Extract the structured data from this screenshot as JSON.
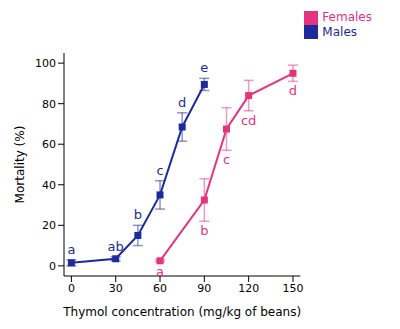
{
  "chart_data": {
    "type": "line",
    "x_label": "Thymol concentration (mg/kg of beans)",
    "y_label": "Mortality (%)",
    "xlim": [
      -5,
      155
    ],
    "xticks": [
      0,
      30,
      60,
      90,
      120,
      150
    ],
    "ylim": [
      -5,
      105
    ],
    "yticks": [
      0,
      20,
      40,
      60,
      80,
      100
    ],
    "grid": false,
    "legend": "upper right",
    "marker": "square",
    "series": [
      {
        "name": "Females",
        "color": "#e6337d",
        "x": [
          60,
          90,
          105,
          120,
          150
        ],
        "values": [
          2.5,
          32.5,
          67.5,
          84,
          95
        ],
        "errors": [
          0.5,
          10.5,
          10.5,
          7.5,
          4
        ],
        "letters": [
          "a",
          "b",
          "c",
          "cd",
          "d"
        ]
      },
      {
        "name": "Males",
        "color": "#1c2a9c",
        "x": [
          0,
          30,
          45,
          60,
          75,
          90
        ],
        "values": [
          1.5,
          3.5,
          15,
          35,
          68.5,
          89.5
        ],
        "errors": [
          1.5,
          1,
          5,
          7,
          7,
          3
        ],
        "letters": [
          "a",
          "ab",
          "b",
          "c",
          "d",
          "e"
        ]
      }
    ]
  }
}
